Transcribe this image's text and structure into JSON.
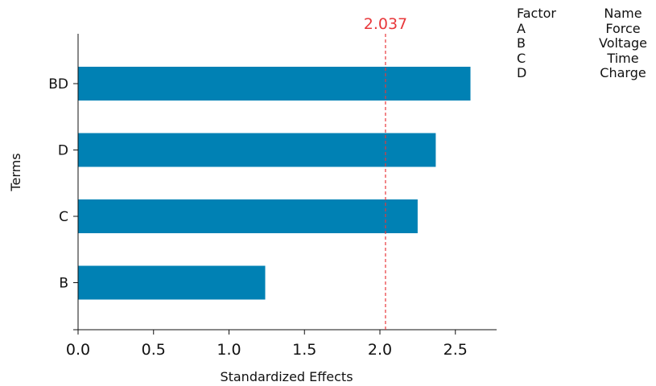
{
  "chart_data": {
    "type": "bar",
    "orientation": "horizontal",
    "categories": [
      "BD",
      "D",
      "C",
      "B"
    ],
    "values": [
      2.6,
      2.37,
      2.25,
      1.24
    ],
    "xlabel": "Standardized Effects",
    "ylabel": "Terms",
    "xlim": [
      0,
      2.8
    ],
    "xticks": [
      "0.0",
      "0.5",
      "1.0",
      "1.5",
      "2.0",
      "2.5"
    ],
    "reference_line": {
      "value": 2.037,
      "label": "2.037",
      "color": "#e8383b"
    },
    "bar_color": "#0081b4",
    "legend_table": {
      "headers": [
        "Factor",
        "Name"
      ],
      "rows": [
        {
          "factor": "A",
          "name": "Force"
        },
        {
          "factor": "B",
          "name": "Voltage"
        },
        {
          "factor": "C",
          "name": "Time"
        },
        {
          "factor": "D",
          "name": "Charge"
        }
      ]
    }
  }
}
